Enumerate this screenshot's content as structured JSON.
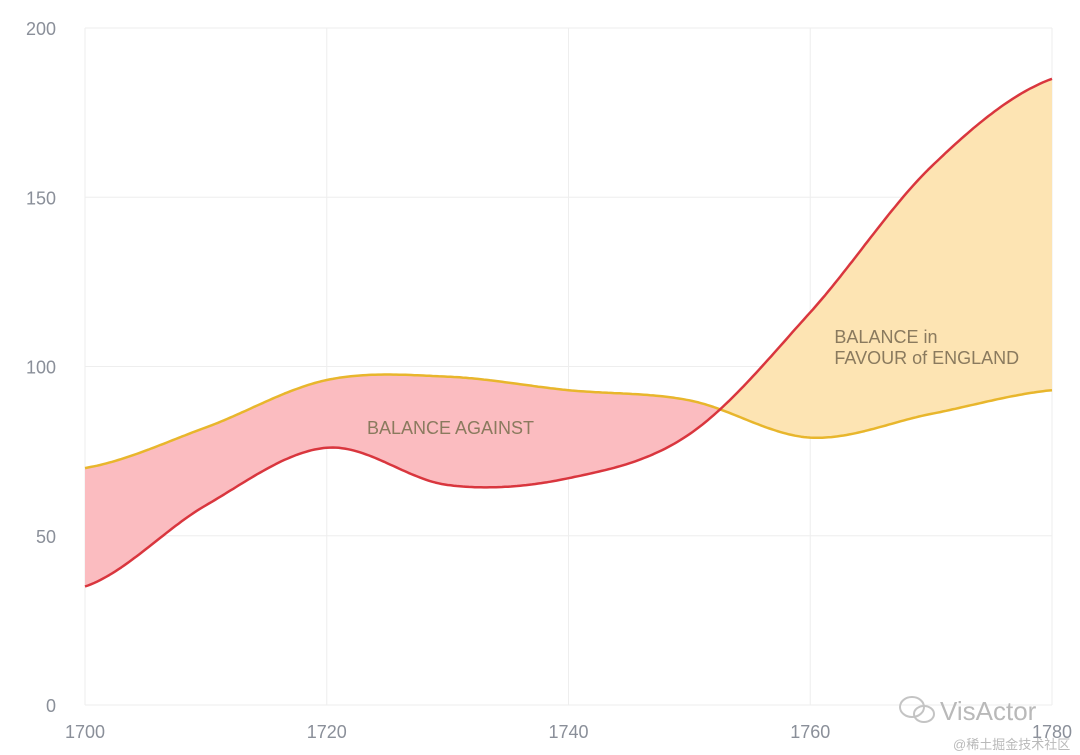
{
  "chart_data": {
    "type": "area",
    "title": "",
    "xlabel": "",
    "ylabel": "",
    "xlim": [
      1700,
      1780
    ],
    "ylim": [
      0,
      200
    ],
    "x_ticks": [
      "1700",
      "1720",
      "1740",
      "1760",
      "1780"
    ],
    "y_ticks": [
      "0",
      "50",
      "100",
      "150",
      "200"
    ],
    "grid": true,
    "x": [
      1700,
      1710,
      1720,
      1730,
      1740,
      1750,
      1760,
      1770,
      1780
    ],
    "series": [
      {
        "values": [
          35,
          59,
          76,
          65,
          67,
          80,
          116,
          159,
          185
        ],
        "color": "#d9363e"
      },
      {
        "values": [
          70,
          82,
          96,
          97,
          93,
          90,
          79,
          86,
          93
        ],
        "color": "#e8b62c"
      }
    ],
    "fill_colors": {
      "against": "#fbbcc0",
      "favour": "#fde4b3"
    },
    "annotations": [
      {
        "lines": [
          "BALANCE AGAINST"
        ],
        "x": 1732,
        "y": 80
      },
      {
        "lines": [
          "BALANCE in",
          "FAVOUR of ENGLAND"
        ],
        "x": 1762,
        "y": 107
      }
    ]
  },
  "watermark": {
    "brand": "VisActor",
    "source": "@稀土掘金技术社区"
  }
}
